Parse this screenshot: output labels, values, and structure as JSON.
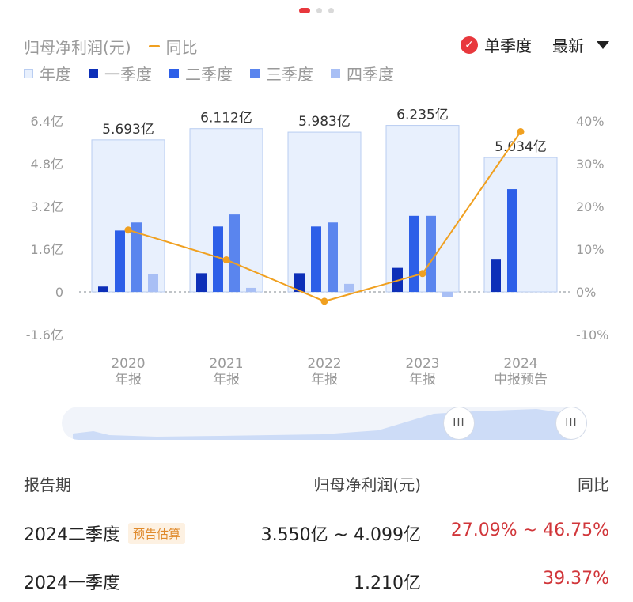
{
  "legend": {
    "metric_label": "归母净利润(元)",
    "yoy_label": "同比",
    "annual": "年度",
    "q1": "一季度",
    "q2": "二季度",
    "q3": "三季度",
    "q4": "四季度"
  },
  "controls": {
    "single_quarter": "单季度",
    "latest": "最新"
  },
  "chart_data": {
    "type": "bar",
    "categories": [
      "2020\n年报",
      "2021\n年报",
      "2022\n年报",
      "2023\n年报",
      "2024\n中报预告"
    ],
    "annual": [
      5.693,
      6.112,
      5.983,
      6.235,
      5.034
    ],
    "annual_labels": [
      "5.693亿",
      "6.112亿",
      "5.983亿",
      "6.235亿",
      "5.034亿"
    ],
    "series": [
      {
        "name": "一季度",
        "values": [
          0.2,
          0.7,
          0.7,
          0.9,
          1.21
        ]
      },
      {
        "name": "二季度",
        "values": [
          2.3,
          2.45,
          2.45,
          2.85,
          3.85
        ]
      },
      {
        "name": "三季度",
        "values": [
          2.6,
          2.9,
          2.6,
          2.85,
          null
        ]
      },
      {
        "name": "四季度",
        "values": [
          0.68,
          0.15,
          0.3,
          -0.2,
          null
        ]
      }
    ],
    "yoy": [
      14.5,
      7.5,
      -2.2,
      4.3,
      37.5
    ],
    "ylim": [
      -1.6,
      6.4
    ],
    "yticks": [
      "-1.6亿",
      "0",
      "1.6亿",
      "3.2亿",
      "4.8亿",
      "6.4亿"
    ],
    "y2lim": [
      -10,
      40
    ],
    "y2ticks": [
      "-10%",
      "0%",
      "10%",
      "20%",
      "30%",
      "40%"
    ],
    "colors": {
      "annual_fill": "#e8f0fd",
      "annual_stroke": "#b9cdf1",
      "q1": "#0d2fb8",
      "q2": "#2d5fe8",
      "q3": "#5a85ee",
      "q4": "#a8bff5",
      "yoy_line": "#f0a020"
    }
  },
  "table": {
    "headers": {
      "period": "报告期",
      "profit": "归母净利润(元)",
      "yoy": "同比"
    },
    "rows": [
      {
        "period": "2024二季度",
        "tag": "预告估算",
        "profit": "3.550亿 ~ 4.099亿",
        "yoy": "27.09% ~ 46.75%"
      },
      {
        "period": "2024一季度",
        "profit": "1.210亿",
        "yoy": "39.37%"
      }
    ]
  }
}
